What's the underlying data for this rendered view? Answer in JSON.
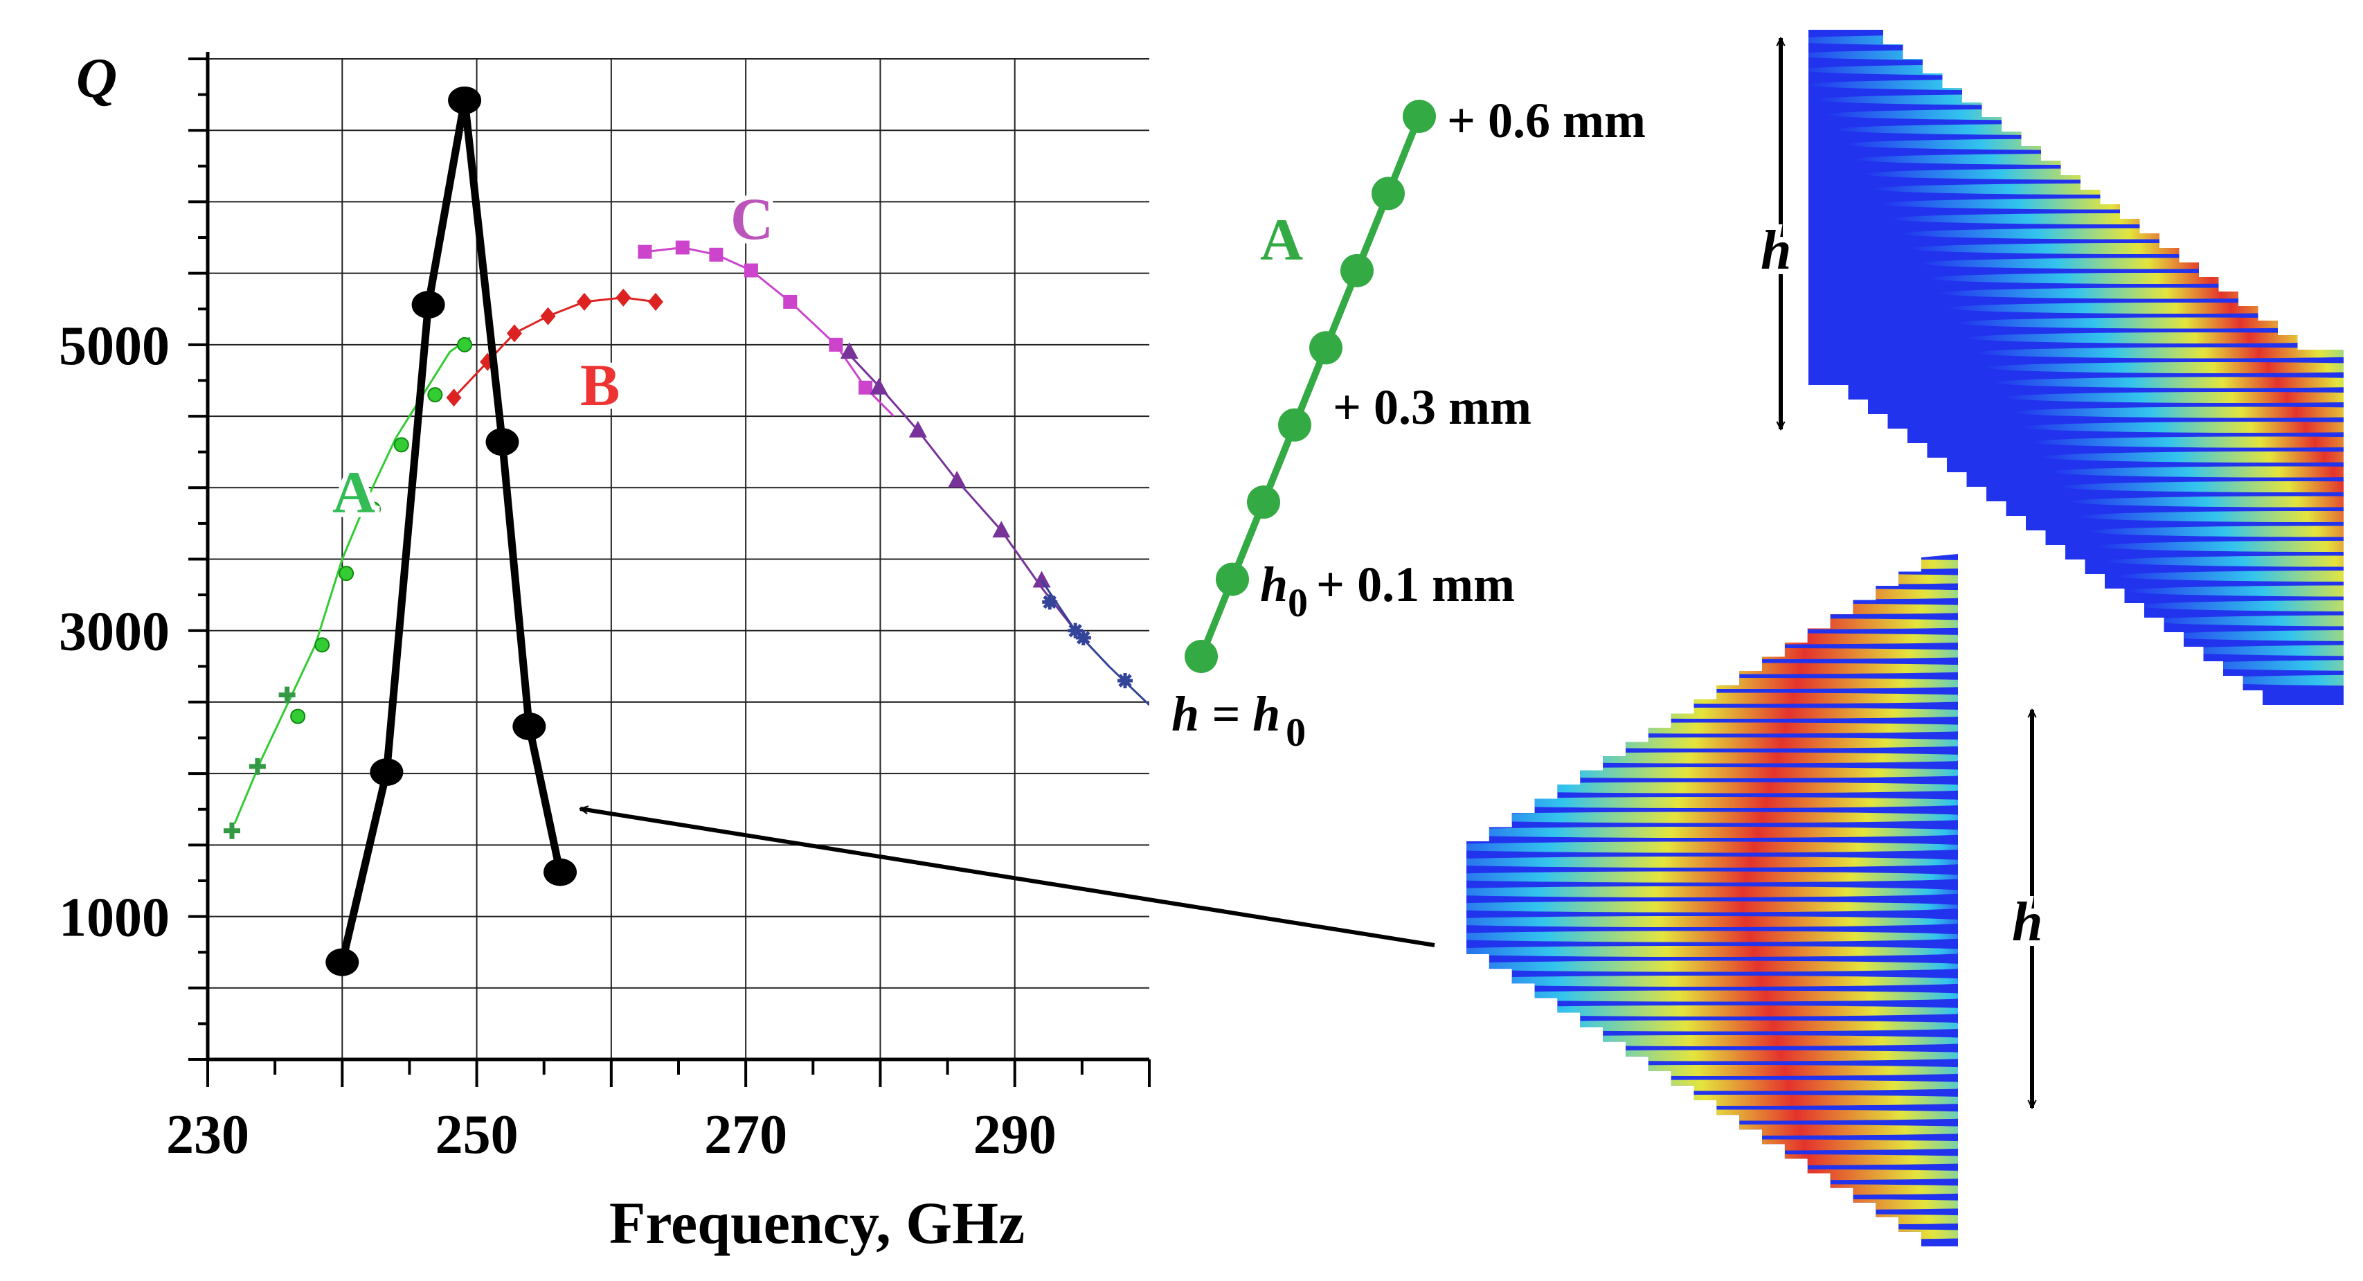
{
  "chart_data": [
    {
      "type": "line",
      "ylabel": "Q",
      "xlabel": "Frequency, GHz",
      "xlim": [
        230,
        300
      ],
      "ylim": [
        0,
        7000
      ],
      "x_ticks": [
        230,
        250,
        270,
        290
      ],
      "y_ticks": [
        1000,
        3000,
        5000
      ],
      "grid": true,
      "series": [
        {
          "name": "A",
          "color": "#33cc33",
          "line_x": [
            232,
            234,
            236,
            238,
            240,
            242,
            244,
            246,
            248,
            249.5
          ],
          "line_y": [
            1650,
            2100,
            2500,
            2900,
            3500,
            3950,
            4350,
            4650,
            4950,
            5050
          ],
          "points": [
            {
              "x": 236.7,
              "y": 2400,
              "marker": "circle"
            },
            {
              "x": 238.5,
              "y": 2900,
              "marker": "circle"
            },
            {
              "x": 240.3,
              "y": 3400,
              "marker": "circle"
            },
            {
              "x": 242.3,
              "y": 3850,
              "marker": "circle"
            },
            {
              "x": 244.4,
              "y": 4300,
              "marker": "circle"
            },
            {
              "x": 246.9,
              "y": 4650,
              "marker": "circle"
            },
            {
              "x": 249.1,
              "y": 5000,
              "marker": "circle"
            },
            {
              "x": 231.8,
              "y": 1600,
              "marker": "plus"
            },
            {
              "x": 233.7,
              "y": 2050,
              "marker": "plus"
            },
            {
              "x": 235.9,
              "y": 2550,
              "marker": "plus"
            }
          ]
        },
        {
          "name": "B",
          "color": "#dd2222",
          "line_x": [
            248.3,
            250.8,
            252.8,
            255.3,
            258.0,
            260.9,
            263.3
          ],
          "line_y": [
            4630,
            4880,
            5080,
            5200,
            5300,
            5330,
            5300
          ],
          "points": [
            {
              "x": 248.3,
              "y": 4630,
              "marker": "diamond"
            },
            {
              "x": 250.8,
              "y": 4880,
              "marker": "diamond"
            },
            {
              "x": 252.8,
              "y": 5080,
              "marker": "diamond"
            },
            {
              "x": 255.3,
              "y": 5200,
              "marker": "diamond"
            },
            {
              "x": 258.0,
              "y": 5300,
              "marker": "diamond"
            },
            {
              "x": 260.9,
              "y": 5330,
              "marker": "diamond"
            },
            {
              "x": 263.3,
              "y": 5300,
              "marker": "diamond"
            }
          ]
        },
        {
          "name": "C",
          "color": "#cc44cc",
          "line_x": [
            262.5,
            265.3,
            267.8,
            270.4,
            273.3,
            276.7,
            278.9,
            281
          ],
          "line_y": [
            5650,
            5680,
            5630,
            5520,
            5300,
            5000,
            4700,
            4500
          ],
          "points": [
            {
              "x": 262.5,
              "y": 5650,
              "marker": "square"
            },
            {
              "x": 265.3,
              "y": 5680,
              "marker": "square"
            },
            {
              "x": 267.8,
              "y": 5630,
              "marker": "square"
            },
            {
              "x": 270.4,
              "y": 5520,
              "marker": "square"
            },
            {
              "x": 273.3,
              "y": 5300,
              "marker": "square"
            },
            {
              "x": 276.7,
              "y": 5000,
              "marker": "square"
            },
            {
              "x": 278.9,
              "y": 4700,
              "marker": "square"
            }
          ]
        },
        {
          "color": "#773399",
          "line_x": [
            277.5,
            280,
            282.8,
            285.7,
            289,
            292,
            294.5
          ],
          "line_y": [
            4950,
            4700,
            4400,
            4050,
            3700,
            3300,
            3000
          ],
          "points": [
            {
              "x": 277.7,
              "y": 4950,
              "marker": "triangle"
            },
            {
              "x": 279.9,
              "y": 4700,
              "marker": "triangle"
            },
            {
              "x": 282.8,
              "y": 4400,
              "marker": "triangle"
            },
            {
              "x": 285.7,
              "y": 4050,
              "marker": "triangle"
            },
            {
              "x": 289.0,
              "y": 3700,
              "marker": "triangle"
            },
            {
              "x": 292.0,
              "y": 3350,
              "marker": "triangle"
            }
          ]
        },
        {
          "color": "#334499",
          "line_x": [
            292,
            294.5,
            297,
            300
          ],
          "line_y": [
            3350,
            3000,
            2750,
            2480
          ],
          "points": [
            {
              "x": 292.6,
              "y": 3200,
              "marker": "star"
            },
            {
              "x": 294.5,
              "y": 3000,
              "marker": "star"
            },
            {
              "x": 295.1,
              "y": 2950,
              "marker": "star"
            },
            {
              "x": 298.2,
              "y": 2650,
              "marker": "star"
            }
          ]
        },
        {
          "color": "#000000",
          "line_x": [
            240.0,
            243.3,
            246.4,
            249.1,
            251.9,
            253.9,
            256.2
          ],
          "line_y": [
            680,
            2010,
            5280,
            6710,
            4320,
            2330,
            1310
          ],
          "points": [
            {
              "x": 240.0,
              "y": 680,
              "marker": "bigcircle"
            },
            {
              "x": 243.3,
              "y": 2010,
              "marker": "bigcircle"
            },
            {
              "x": 246.4,
              "y": 5280,
              "marker": "bigcircle"
            },
            {
              "x": 249.1,
              "y": 6710,
              "marker": "bigcircle"
            },
            {
              "x": 251.9,
              "y": 4320,
              "marker": "bigcircle"
            },
            {
              "x": 253.9,
              "y": 2330,
              "marker": "bigcircle"
            },
            {
              "x": 256.2,
              "y": 1310,
              "marker": "bigcircle"
            }
          ]
        }
      ]
    }
  ],
  "labels": {
    "y_axis": "Q",
    "x_axis": "Frequency, GHz",
    "series_A": "A",
    "series_B": "B",
    "series_C": "C",
    "ticks_x": [
      "230",
      "250",
      "270",
      "290"
    ],
    "ticks_y": [
      "1000",
      "3000",
      "5000"
    ]
  },
  "step_legend": {
    "title": "A",
    "color": "#33aa44",
    "labels": {
      "plus_0_6": "+ 0.6 mm",
      "plus_0_3": "+ 0.3 mm",
      "h0_prefix": "h",
      "h0_sub": "0",
      "plus_0_1": "+ 0.1 mm",
      "h_eq": "h = h",
      "h_eq_sub": "0"
    }
  },
  "field_plots": {
    "dimension_label": "h"
  }
}
